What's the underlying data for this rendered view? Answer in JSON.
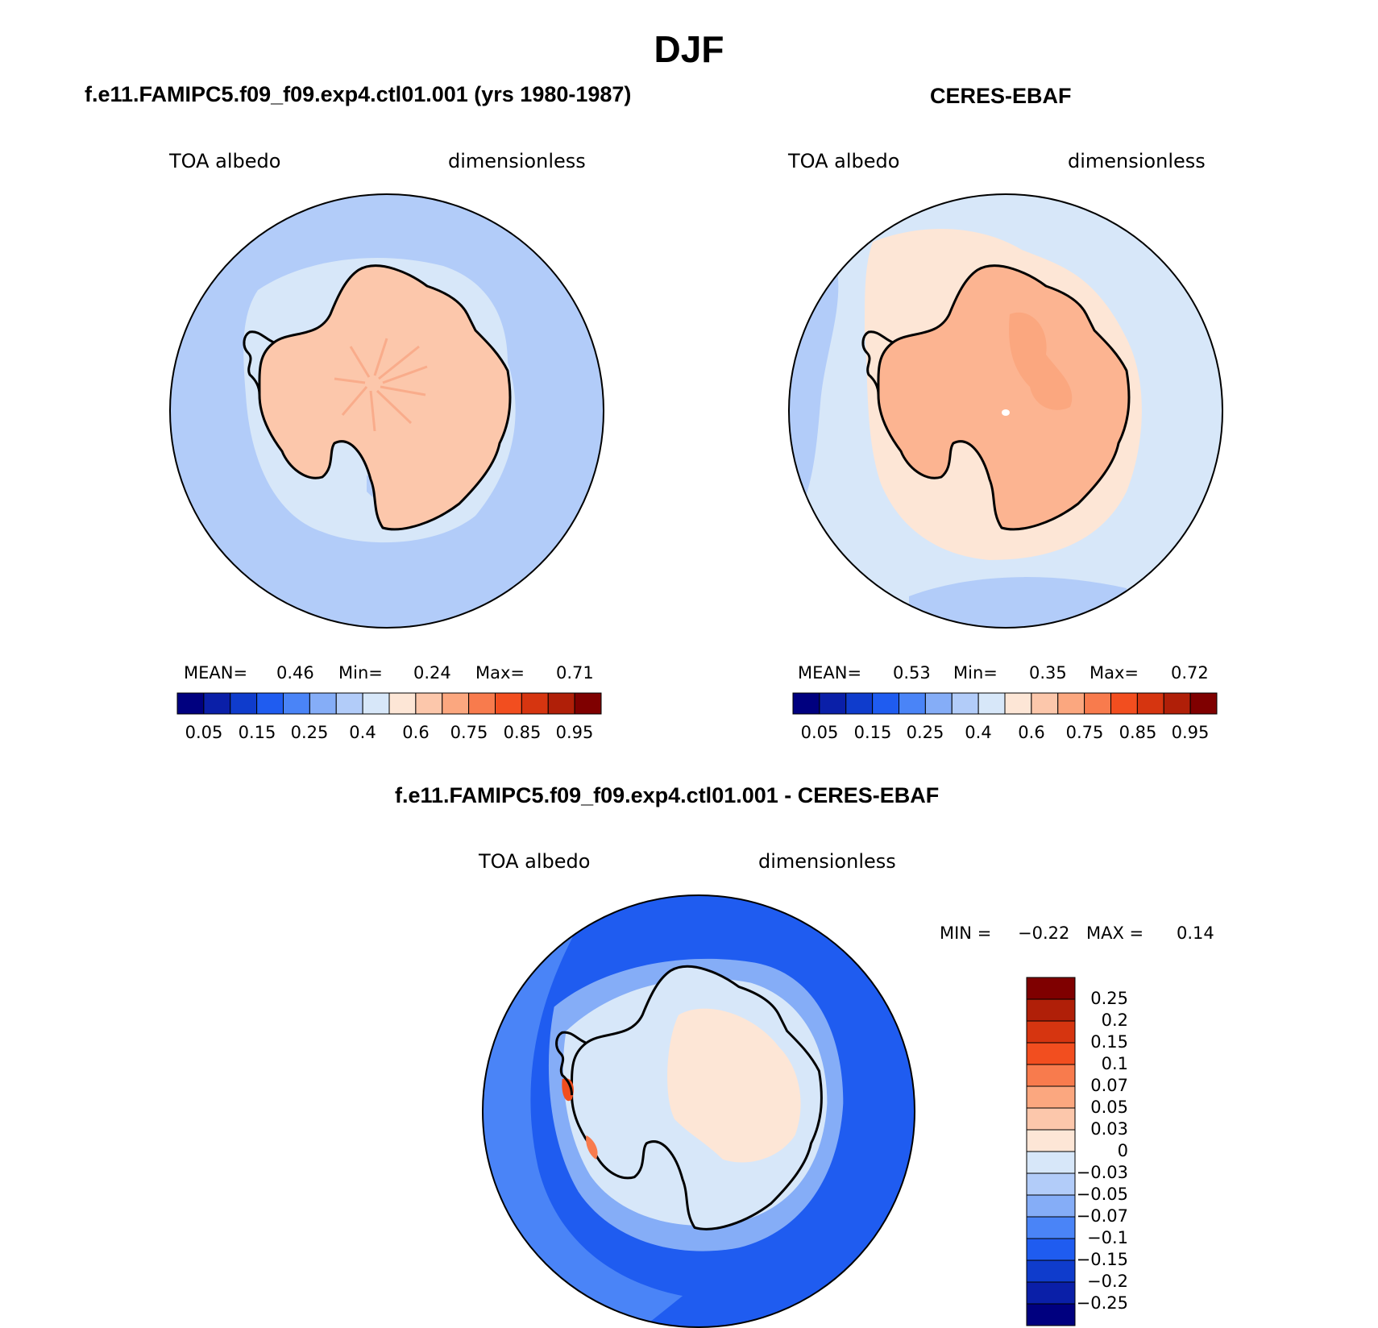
{
  "page": {
    "title": "DJF"
  },
  "panels": {
    "model": {
      "title": "f.e11.FAMIPC5.f09_f09.exp4.ctl01.001 (yrs 1980-1987)",
      "var_label": "TOA albedo",
      "units_label": "dimensionless",
      "stats": {
        "mean_label": "MEAN=",
        "mean_value": "0.46",
        "min_label": "Min=",
        "min_value": "0.24",
        "max_label": "Max=",
        "max_value": "0.71"
      },
      "colorbar_ticks": [
        "0.05",
        "0.15",
        "0.25",
        "0.4",
        "0.6",
        "0.75",
        "0.85",
        "0.95"
      ]
    },
    "obs": {
      "title": "CERES-EBAF",
      "var_label": "TOA albedo",
      "units_label": "dimensionless",
      "stats": {
        "mean_label": "MEAN=",
        "mean_value": "0.53",
        "min_label": "Min=",
        "min_value": "0.35",
        "max_label": "Max=",
        "max_value": "0.72"
      },
      "colorbar_ticks": [
        "0.05",
        "0.15",
        "0.25",
        "0.4",
        "0.6",
        "0.75",
        "0.85",
        "0.95"
      ]
    },
    "diff": {
      "title": "f.e11.FAMIPC5.f09_f09.exp4.ctl01.001 - CERES-EBAF",
      "var_label": "TOA albedo",
      "units_label": "dimensionless",
      "stats": {
        "min_label": "MIN =",
        "min_value": "−0.22",
        "max_label": "MAX =",
        "max_value": "0.14"
      },
      "colorbar_ticks": [
        "0.25",
        "0.2",
        "0.15",
        "0.1",
        "0.07",
        "0.05",
        "0.03",
        "0",
        "−0.03",
        "−0.05",
        "−0.07",
        "−0.1",
        "−0.15",
        "−0.2",
        "−0.25"
      ]
    }
  },
  "colors": {
    "abs_scale": [
      "#00007f",
      "#0a1fa8",
      "#0f3ccc",
      "#1f5cf0",
      "#4a84f7",
      "#85adf7",
      "#b2ccf9",
      "#d7e7f9",
      "#fde6d6",
      "#fcc7ab",
      "#fba77f",
      "#f87b4d",
      "#f24e1f",
      "#d63510",
      "#b01f08",
      "#7f0000"
    ],
    "diff_scale": [
      "#7f0000",
      "#b01f08",
      "#d63510",
      "#f24e1f",
      "#f87b4d",
      "#fba77f",
      "#fcc7ab",
      "#fde6d6",
      "#d7e7f9",
      "#b2ccf9",
      "#85adf7",
      "#4a84f7",
      "#1f5cf0",
      "#0f3ccc",
      "#0a1fa8",
      "#00007f"
    ],
    "coast": "#000000"
  }
}
